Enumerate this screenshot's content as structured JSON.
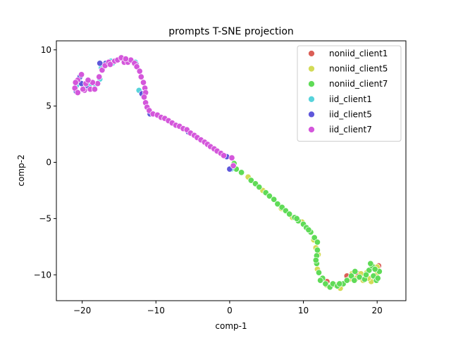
{
  "chart_data": {
    "type": "scatter",
    "title": "prompts T-SNE projection",
    "xlabel": "comp-1",
    "ylabel": "comp-2",
    "xlim": [
      -23.5,
      23.9
    ],
    "ylim": [
      -12.3,
      10.8
    ],
    "xticks": [
      -20,
      -10,
      0,
      10,
      20
    ],
    "yticks": [
      -10,
      -5,
      0,
      5,
      10
    ],
    "grid": false,
    "legend_position": "top-right",
    "series": [
      {
        "name": "noniid_client1",
        "color": "#db5f57",
        "points": [
          [
            15.9,
            -10.1
          ],
          [
            20.2,
            -9.2
          ],
          [
            19.6,
            -10.3
          ],
          [
            17.4,
            -9.9
          ],
          [
            13.2,
            -10.6
          ]
        ]
      },
      {
        "name": "noniid_client5",
        "color": "#d3db57",
        "points": [
          [
            2.5,
            -1.3
          ],
          [
            8.5,
            -4.9
          ],
          [
            9.8,
            -5.3
          ],
          [
            11.4,
            -6.9
          ],
          [
            12.0,
            -8.2
          ],
          [
            13.1,
            -10.9
          ],
          [
            15.0,
            -11.2
          ],
          [
            16.6,
            -9.9
          ],
          [
            17.2,
            -10.3
          ],
          [
            18.1,
            -10.5
          ],
          [
            18.6,
            -9.8
          ],
          [
            19.2,
            -10.6
          ],
          [
            19.9,
            -10.0
          ],
          [
            16.2,
            -10.4
          ],
          [
            14.3,
            -10.9
          ],
          [
            11.7,
            -7.6
          ],
          [
            20.0,
            -9.3
          ],
          [
            4.5,
            -2.5
          ],
          [
            7.0,
            -4.1
          ],
          [
            17.8,
            -9.9
          ],
          [
            18.8,
            -10.3
          ],
          [
            11.9,
            -9.5
          ]
        ]
      },
      {
        "name": "noniid_client7",
        "color": "#5fdb57",
        "points": [
          [
            0.6,
            -0.1
          ],
          [
            0.9,
            -0.6
          ],
          [
            1.6,
            -0.9
          ],
          [
            2.9,
            -1.6
          ],
          [
            3.5,
            -1.9
          ],
          [
            4.0,
            -2.2
          ],
          [
            4.9,
            -2.7
          ],
          [
            5.4,
            -3.0
          ],
          [
            6.0,
            -3.3
          ],
          [
            6.5,
            -3.7
          ],
          [
            7.1,
            -4.0
          ],
          [
            7.6,
            -4.3
          ],
          [
            8.1,
            -4.6
          ],
          [
            8.8,
            -4.9
          ],
          [
            9.3,
            -5.2
          ],
          [
            10.0,
            -5.5
          ],
          [
            10.4,
            -5.8
          ],
          [
            11.0,
            -6.2
          ],
          [
            11.5,
            -6.7
          ],
          [
            11.9,
            -7.1
          ],
          [
            11.9,
            -7.8
          ],
          [
            11.8,
            -8.3
          ],
          [
            11.8,
            -9.0
          ],
          [
            12.1,
            -9.8
          ],
          [
            12.6,
            -10.3
          ],
          [
            13.0,
            -10.8
          ],
          [
            13.6,
            -11.1
          ],
          [
            14.0,
            -10.8
          ],
          [
            14.6,
            -11.0
          ],
          [
            15.4,
            -10.8
          ],
          [
            15.9,
            -10.5
          ],
          [
            16.5,
            -10.1
          ],
          [
            17.0,
            -9.7
          ],
          [
            17.6,
            -10.2
          ],
          [
            18.3,
            -10.4
          ],
          [
            18.9,
            -9.6
          ],
          [
            19.3,
            -9.2
          ],
          [
            19.5,
            -10.1
          ],
          [
            19.9,
            -10.5
          ],
          [
            20.3,
            -9.7
          ],
          [
            19.1,
            -9.0
          ],
          [
            18.5,
            -10.0
          ],
          [
            16.9,
            -10.5
          ],
          [
            14.9,
            -10.8
          ],
          [
            11.7,
            -8.7
          ],
          [
            12.3,
            -10.5
          ],
          [
            10.7,
            -6.0
          ],
          [
            9.1,
            -5.0
          ],
          [
            20.1,
            -10.3
          ],
          [
            19.7,
            -9.5
          ]
        ]
      },
      {
        "name": "iid_client1",
        "color": "#57d3db",
        "points": [
          [
            -20.4,
            7.4
          ],
          [
            -19.0,
            6.9
          ],
          [
            -18.2,
            6.9
          ],
          [
            -17.6,
            7.4
          ],
          [
            -17.4,
            8.4
          ],
          [
            -16.6,
            8.8
          ],
          [
            -16.1,
            9.0
          ],
          [
            -12.8,
            8.9
          ],
          [
            -12.3,
            6.4
          ],
          [
            0.2,
            -0.6
          ],
          [
            -20.8,
            6.8
          ],
          [
            -15.9,
            8.8
          ]
        ]
      },
      {
        "name": "iid_client5",
        "color": "#5f57db",
        "points": [
          [
            -20.8,
            6.3
          ],
          [
            -20.3,
            7.6
          ],
          [
            -19.6,
            6.8
          ],
          [
            -17.6,
            8.8
          ],
          [
            -16.8,
            8.8
          ],
          [
            -12.7,
            8.7
          ],
          [
            -11.9,
            6.1
          ],
          [
            -10.8,
            4.3
          ],
          [
            -5.6,
            2.7
          ],
          [
            -0.4,
            0.5
          ],
          [
            0.0,
            -0.6
          ],
          [
            -20.1,
            7.0
          ],
          [
            -19.3,
            6.6
          ]
        ]
      },
      {
        "name": "iid_client7",
        "color": "#d457db",
        "points": [
          [
            -21.0,
            6.6
          ],
          [
            -20.6,
            7.3
          ],
          [
            -20.1,
            7.8
          ],
          [
            -19.5,
            7.0
          ],
          [
            -19.7,
            6.4
          ],
          [
            -18.9,
            6.5
          ],
          [
            -18.3,
            6.5
          ],
          [
            -17.9,
            7.0
          ],
          [
            -17.7,
            7.6
          ],
          [
            -17.3,
            8.2
          ],
          [
            -16.9,
            8.6
          ],
          [
            -16.4,
            8.9
          ],
          [
            -15.6,
            9.0
          ],
          [
            -15.2,
            9.1
          ],
          [
            -14.7,
            9.3
          ],
          [
            -14.3,
            8.9
          ],
          [
            -13.8,
            8.9
          ],
          [
            -13.4,
            9.1
          ],
          [
            -12.9,
            8.8
          ],
          [
            -12.6,
            8.5
          ],
          [
            -12.2,
            8.1
          ],
          [
            -12.0,
            7.6
          ],
          [
            -11.7,
            7.1
          ],
          [
            -11.5,
            6.6
          ],
          [
            -11.4,
            6.2
          ],
          [
            -11.6,
            5.8
          ],
          [
            -11.4,
            5.3
          ],
          [
            -11.2,
            4.9
          ],
          [
            -10.9,
            4.6
          ],
          [
            -10.4,
            4.3
          ],
          [
            -9.8,
            4.2
          ],
          [
            -9.3,
            4.0
          ],
          [
            -8.8,
            3.9
          ],
          [
            -8.3,
            3.7
          ],
          [
            -7.8,
            3.5
          ],
          [
            -7.3,
            3.3
          ],
          [
            -6.8,
            3.2
          ],
          [
            -6.3,
            3.0
          ],
          [
            -5.8,
            2.9
          ],
          [
            -5.3,
            2.6
          ],
          [
            -4.8,
            2.4
          ],
          [
            -4.4,
            2.2
          ],
          [
            -3.9,
            2.0
          ],
          [
            -3.4,
            1.8
          ],
          [
            -3.0,
            1.6
          ],
          [
            -2.6,
            1.4
          ],
          [
            -2.1,
            1.2
          ],
          [
            -1.7,
            1.0
          ],
          [
            -1.2,
            0.8
          ],
          [
            -0.8,
            0.6
          ],
          [
            0.3,
            0.4
          ],
          [
            0.5,
            -0.3
          ],
          [
            -20.6,
            6.2
          ],
          [
            -19.9,
            6.5
          ],
          [
            -18.6,
            7.1
          ],
          [
            -16.2,
            8.7
          ],
          [
            -14.1,
            9.2
          ],
          [
            -20.9,
            7.1
          ],
          [
            -19.2,
            7.3
          ]
        ]
      }
    ]
  }
}
